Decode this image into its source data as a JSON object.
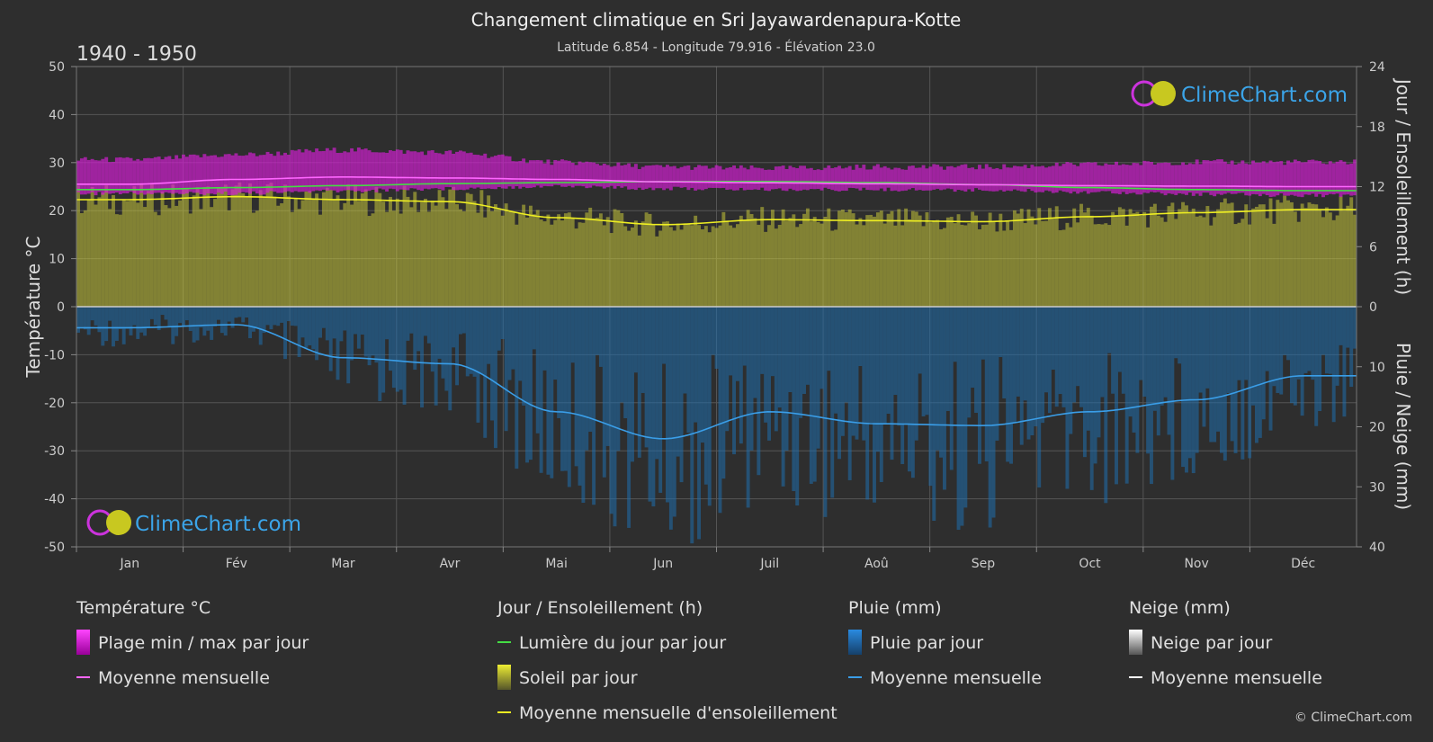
{
  "header": {
    "title": "Changement climatique en Sri Jayawardenapura-Kotte",
    "subtitle": "Latitude 6.854 - Longitude 79.916 - Élévation 23.0",
    "period": "1940 - 1950"
  },
  "brand": {
    "name": "ClimeChart.com",
    "copyright": "© ClimeChart.com"
  },
  "colors": {
    "background": "#2e2e2e",
    "temp_range": "#d020d0",
    "temp_mean": "#ff66ff",
    "daylight": "#44dd44",
    "sunshine": "#c8c83a",
    "sunshine_mean": "#eeee22",
    "rain": "#1f6fae",
    "rain_mean": "#3a9ee8",
    "snow_mean": "#ffffff"
  },
  "chart_data": {
    "type": "area",
    "categories": [
      "Jan",
      "Fév",
      "Mar",
      "Avr",
      "Mai",
      "Jun",
      "Juil",
      "Aoû",
      "Sep",
      "Oct",
      "Nov",
      "Déc"
    ],
    "axes": {
      "left": {
        "label": "Température °C",
        "range": [
          -50,
          50
        ],
        "ticks": [
          50,
          40,
          30,
          20,
          10,
          0,
          -10,
          -20,
          -30,
          -40,
          -50
        ]
      },
      "right_top": {
        "label": "Jour / Ensoleillement (h)",
        "range": [
          0,
          24
        ],
        "ticks": [
          24,
          18,
          12,
          6,
          0
        ]
      },
      "right_bottom": {
        "label": "Pluie / Neige (mm)",
        "range": [
          0,
          40
        ],
        "ticks": [
          0,
          10,
          20,
          30,
          40
        ]
      }
    },
    "grid": true,
    "series": [
      {
        "name": "Plage min / max par jour",
        "kind": "range",
        "axis": "temperature",
        "min": [
          24.0,
          24.0,
          24.5,
          25.0,
          25.5,
          25.0,
          24.8,
          24.8,
          24.7,
          24.3,
          23.8,
          23.6
        ],
        "max": [
          30.0,
          31.0,
          32.0,
          31.5,
          29.5,
          28.5,
          28.2,
          28.5,
          28.5,
          29.0,
          29.5,
          29.5
        ]
      },
      {
        "name": "Moyenne mensuelle",
        "kind": "line",
        "axis": "temperature",
        "values": [
          25.5,
          26.5,
          27.0,
          26.8,
          26.5,
          26.0,
          25.8,
          25.6,
          25.4,
          25.2,
          25.1,
          25.0
        ]
      },
      {
        "name": "Lumière du jour par jour",
        "kind": "line",
        "axis": "sun",
        "values": [
          11.7,
          11.9,
          12.1,
          12.3,
          12.4,
          12.5,
          12.5,
          12.4,
          12.2,
          11.9,
          11.7,
          11.6
        ]
      },
      {
        "name": "Soleil par jour",
        "kind": "area",
        "axis": "sun",
        "values": [
          10.7,
          11.0,
          10.7,
          10.5,
          8.9,
          8.2,
          8.7,
          8.6,
          8.5,
          9.0,
          9.4,
          9.7
        ]
      },
      {
        "name": "Moyenne mensuelle d'ensoleillement",
        "kind": "line",
        "axis": "sun",
        "values": [
          10.7,
          11.0,
          10.7,
          10.5,
          8.9,
          8.2,
          8.7,
          8.6,
          8.5,
          9.0,
          9.4,
          9.7
        ]
      },
      {
        "name": "Pluie par jour",
        "kind": "bars",
        "axis": "precip",
        "values": [
          3.5,
          3.0,
          8.5,
          9.5,
          17.5,
          22.0,
          17.5,
          19.5,
          19.8,
          17.5,
          15.5,
          11.5
        ]
      },
      {
        "name": "Moyenne mensuelle",
        "kind": "line",
        "axis": "precip",
        "values": [
          3.5,
          3.0,
          8.5,
          9.5,
          17.5,
          22.0,
          17.5,
          19.5,
          19.8,
          17.5,
          15.5,
          11.5
        ]
      },
      {
        "name": "Neige par jour",
        "kind": "bars",
        "axis": "precip",
        "values": [
          0,
          0,
          0,
          0,
          0,
          0,
          0,
          0,
          0,
          0,
          0,
          0
        ]
      },
      {
        "name": "Moyenne mensuelle",
        "kind": "line",
        "axis": "precip",
        "values": [
          0,
          0,
          0,
          0,
          0,
          0,
          0,
          0,
          0,
          0,
          0,
          0
        ]
      }
    ]
  },
  "legend": {
    "groups": [
      {
        "title": "Température °C",
        "items": [
          {
            "label": "Plage min / max par jour"
          },
          {
            "label": "Moyenne mensuelle"
          }
        ]
      },
      {
        "title": "Jour / Ensoleillement (h)",
        "items": [
          {
            "label": "Lumière du jour par jour"
          },
          {
            "label": "Soleil par jour"
          },
          {
            "label": "Moyenne mensuelle d'ensoleillement"
          }
        ]
      },
      {
        "title": "Pluie (mm)",
        "items": [
          {
            "label": "Pluie par jour"
          },
          {
            "label": "Moyenne mensuelle"
          }
        ]
      },
      {
        "title": "Neige (mm)",
        "items": [
          {
            "label": "Neige par jour"
          },
          {
            "label": "Moyenne mensuelle"
          }
        ]
      }
    ]
  }
}
